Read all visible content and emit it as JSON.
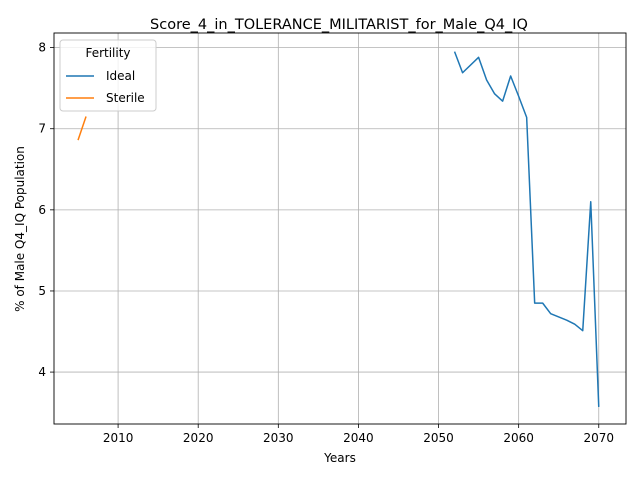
{
  "chart_data": {
    "type": "line",
    "title": "Score_4_in_TOLERANCE_MILITARIST_for_Male_Q4_IQ",
    "xlabel": "Years",
    "ylabel": "% of Male Q4_IQ Population",
    "xlim": [
      2002,
      2073.4
    ],
    "ylim": [
      3.36,
      8.18
    ],
    "xticks": [
      2010,
      2020,
      2030,
      2040,
      2050,
      2060,
      2070
    ],
    "yticks": [
      4,
      5,
      6,
      7,
      8
    ],
    "grid": true,
    "legend": {
      "title": "Fertility",
      "placement": "top-left"
    },
    "series": [
      {
        "name": "Ideal",
        "color": "#1f77b4",
        "x": [
          2052,
          2053,
          2055,
          2056,
          2057,
          2058,
          2059,
          2060,
          2061,
          2062,
          2063,
          2064,
          2065,
          2066,
          2067,
          2068,
          2069,
          2070
        ],
        "y": [
          7.95,
          7.69,
          7.88,
          7.6,
          7.43,
          7.34,
          7.65,
          7.4,
          7.14,
          4.85,
          4.85,
          4.72,
          4.68,
          4.64,
          4.59,
          4.51,
          6.1,
          3.57
        ]
      },
      {
        "name": "Sterile",
        "color": "#ff7f0e",
        "x": [
          2005,
          2006
        ],
        "y": [
          6.86,
          7.15
        ]
      }
    ]
  }
}
